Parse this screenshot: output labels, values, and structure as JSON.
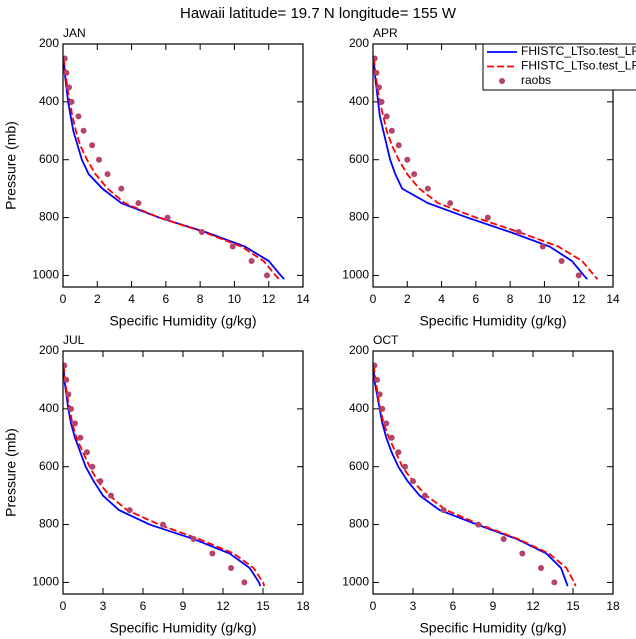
{
  "title": "Hawaii  latitude= 19.7 N longitude= 155 W",
  "chart_data": [
    {
      "type": "profile",
      "title": "JAN",
      "xlabel": "Specific Humidity (g/kg)",
      "ylabel": "Pressure (mb)",
      "xlim": [
        0,
        14
      ],
      "xticks": [
        0,
        2,
        4,
        6,
        8,
        10,
        12,
        14
      ],
      "ylim": [
        200,
        1040
      ],
      "yticks": [
        200,
        400,
        600,
        800,
        1000
      ],
      "y_reversed": true,
      "series": [
        {
          "color": "#0000ff",
          "style": "solid",
          "x": [
            0.05,
            0.1,
            0.2,
            0.3,
            0.45,
            0.6,
            0.85,
            1.1,
            1.5,
            2.3,
            3.4,
            5.6,
            8.3,
            10.6,
            12.0,
            12.7,
            12.9
          ],
          "y": [
            250,
            300,
            350,
            400,
            450,
            500,
            550,
            600,
            650,
            700,
            750,
            800,
            850,
            900,
            950,
            1000,
            1013
          ]
        },
        {
          "color": "#ff0000",
          "style": "dashed",
          "x": [
            0.05,
            0.15,
            0.25,
            0.4,
            0.55,
            0.75,
            1.0,
            1.4,
            1.9,
            2.6,
            3.6,
            5.6,
            8.2,
            10.4,
            11.7,
            12.4,
            12.6
          ],
          "y": [
            250,
            300,
            350,
            400,
            450,
            500,
            550,
            600,
            650,
            700,
            750,
            800,
            850,
            900,
            950,
            1000,
            1013
          ]
        },
        {
          "color": "#b5436a",
          "style": "markers",
          "x": [
            0.1,
            0.2,
            0.35,
            0.5,
            0.9,
            1.2,
            1.7,
            2.1,
            2.6,
            3.4,
            4.4,
            6.1,
            8.1,
            9.9,
            11.0,
            11.9
          ],
          "y": [
            250,
            300,
            350,
            400,
            450,
            500,
            550,
            600,
            650,
            700,
            750,
            800,
            850,
            900,
            950,
            1000
          ]
        }
      ]
    },
    {
      "type": "profile",
      "title": "APR",
      "xlabel": "Specific Humidity (g/kg)",
      "xlim": [
        0,
        14
      ],
      "xticks": [
        0,
        2,
        4,
        6,
        8,
        10,
        12,
        14
      ],
      "ylim": [
        200,
        1040
      ],
      "yticks": [
        200,
        400,
        600,
        800,
        1000
      ],
      "y_reversed": true,
      "legend": "upper right",
      "series": [
        {
          "name": "FHISTC_LTso.test_LF",
          "color": "#0000ff",
          "style": "solid",
          "x": [
            0.05,
            0.1,
            0.2,
            0.3,
            0.4,
            0.6,
            0.8,
            1.0,
            1.3,
            1.7,
            3.2,
            5.5,
            8.0,
            10.3,
            11.6,
            12.3,
            12.5
          ],
          "y": [
            250,
            300,
            350,
            400,
            450,
            500,
            550,
            600,
            650,
            700,
            750,
            800,
            850,
            900,
            950,
            1000,
            1013
          ]
        },
        {
          "name": "FHISTC_LTso.test_LF",
          "color": "#ff0000",
          "style": "dashed",
          "x": [
            0.05,
            0.15,
            0.25,
            0.4,
            0.6,
            0.8,
            1.1,
            1.5,
            2.0,
            2.7,
            3.8,
            6.0,
            8.5,
            10.8,
            12.2,
            12.9,
            13.1
          ],
          "y": [
            250,
            300,
            350,
            400,
            450,
            500,
            550,
            600,
            650,
            700,
            750,
            800,
            850,
            900,
            950,
            1000,
            1013
          ]
        },
        {
          "name": "raobs",
          "color": "#b5436a",
          "style": "markers",
          "x": [
            0.1,
            0.2,
            0.35,
            0.5,
            0.8,
            1.1,
            1.5,
            2.0,
            2.4,
            3.2,
            4.5,
            6.7,
            8.5,
            9.9,
            11.0,
            12.0
          ],
          "y": [
            250,
            300,
            350,
            400,
            450,
            500,
            550,
            600,
            650,
            700,
            750,
            800,
            850,
            900,
            950,
            1000
          ]
        }
      ]
    },
    {
      "type": "profile",
      "title": "JUL",
      "xlabel": "Specific Humidity (g/kg)",
      "ylabel": "Pressure (mb)",
      "xlim": [
        0,
        18
      ],
      "xticks": [
        0,
        3,
        6,
        9,
        12,
        15,
        18
      ],
      "ylim": [
        200,
        1040
      ],
      "yticks": [
        200,
        400,
        600,
        800,
        1000
      ],
      "y_reversed": true,
      "series": [
        {
          "color": "#0000ff",
          "style": "solid",
          "x": [
            0.05,
            0.1,
            0.25,
            0.4,
            0.6,
            0.9,
            1.3,
            1.7,
            2.3,
            3.0,
            4.2,
            6.5,
            9.8,
            12.5,
            14.0,
            14.7,
            14.8
          ],
          "y": [
            250,
            300,
            350,
            400,
            450,
            500,
            550,
            600,
            650,
            700,
            750,
            800,
            850,
            900,
            950,
            1000,
            1013
          ]
        },
        {
          "color": "#ff0000",
          "style": "dashed",
          "x": [
            0.05,
            0.15,
            0.3,
            0.5,
            0.7,
            1.0,
            1.5,
            2.0,
            2.6,
            3.5,
            4.8,
            7.2,
            10.2,
            12.8,
            14.3,
            15.0,
            15.1
          ],
          "y": [
            250,
            300,
            350,
            400,
            450,
            500,
            550,
            600,
            650,
            700,
            750,
            800,
            850,
            900,
            950,
            1000,
            1013
          ]
        },
        {
          "color": "#b5436a",
          "style": "markers",
          "x": [
            0.1,
            0.25,
            0.4,
            0.6,
            0.9,
            1.3,
            1.8,
            2.2,
            2.8,
            3.6,
            5.0,
            7.5,
            9.8,
            11.2,
            12.6,
            13.6
          ],
          "y": [
            250,
            300,
            350,
            400,
            450,
            500,
            550,
            600,
            650,
            700,
            750,
            800,
            850,
            900,
            950,
            1000
          ]
        }
      ]
    },
    {
      "type": "profile",
      "title": "OCT",
      "xlabel": "Specific Humidity (g/kg)",
      "xlim": [
        0,
        18
      ],
      "xticks": [
        0,
        3,
        6,
        9,
        12,
        15,
        18
      ],
      "ylim": [
        200,
        1040
      ],
      "yticks": [
        200,
        400,
        600,
        800,
        1000
      ],
      "y_reversed": true,
      "series": [
        {
          "color": "#0000ff",
          "style": "solid",
          "x": [
            0.05,
            0.1,
            0.3,
            0.5,
            0.7,
            1.0,
            1.4,
            1.9,
            2.6,
            3.5,
            5.0,
            7.8,
            10.8,
            13.0,
            14.1,
            14.5,
            14.6
          ],
          "y": [
            250,
            300,
            350,
            400,
            450,
            500,
            550,
            600,
            650,
            700,
            750,
            800,
            850,
            900,
            950,
            1000,
            1013
          ]
        },
        {
          "color": "#ff0000",
          "style": "dashed",
          "x": [
            0.05,
            0.2,
            0.35,
            0.55,
            0.8,
            1.2,
            1.7,
            2.2,
            3.0,
            4.0,
            5.5,
            8.0,
            10.9,
            13.2,
            14.5,
            15.1,
            15.2
          ],
          "y": [
            250,
            300,
            350,
            400,
            450,
            500,
            550,
            600,
            650,
            700,
            750,
            800,
            850,
            900,
            950,
            1000,
            1013
          ]
        },
        {
          "color": "#b5436a",
          "style": "markers",
          "x": [
            0.1,
            0.3,
            0.5,
            0.7,
            1.0,
            1.4,
            1.9,
            2.4,
            3.0,
            3.9,
            5.3,
            7.9,
            9.8,
            11.2,
            12.6,
            13.6
          ],
          "y": [
            250,
            300,
            350,
            400,
            450,
            500,
            550,
            600,
            650,
            700,
            750,
            800,
            850,
            900,
            950,
            1000
          ]
        }
      ]
    }
  ]
}
